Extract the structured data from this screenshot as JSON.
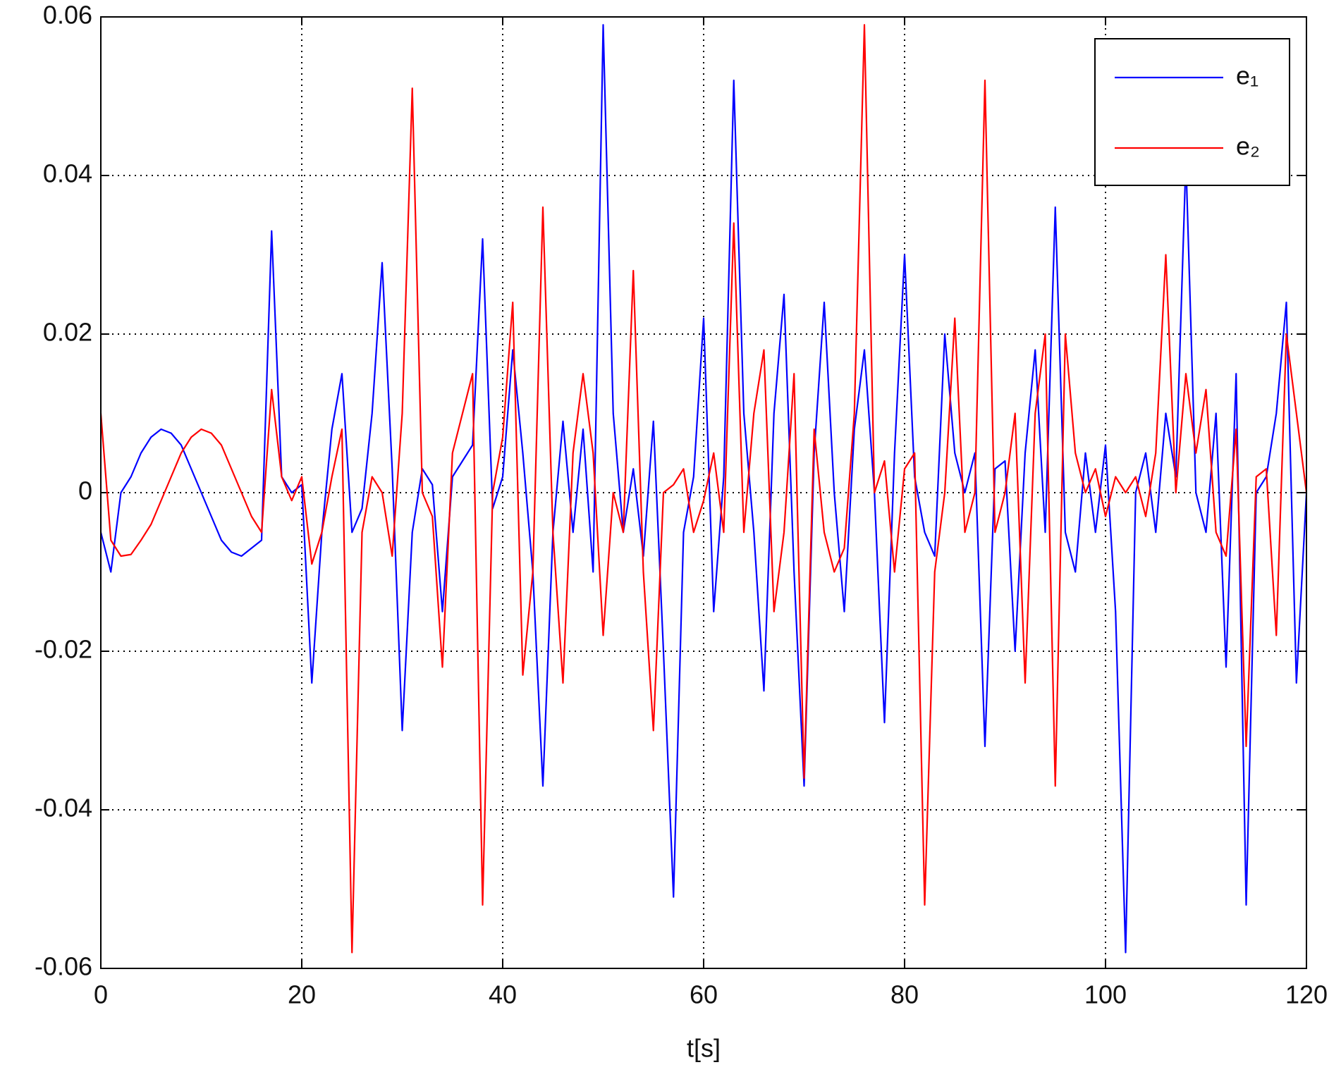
{
  "chart_data": {
    "type": "line",
    "xlabel": "t[s]",
    "x": [
      0,
      1,
      2,
      3,
      4,
      5,
      6,
      7,
      8,
      9,
      10,
      11,
      12,
      13,
      14,
      15,
      16,
      17,
      18,
      19,
      20,
      21,
      22,
      23,
      24,
      25,
      26,
      27,
      28,
      29,
      30,
      31,
      32,
      33,
      34,
      35,
      36,
      37,
      38,
      39,
      40,
      41,
      42,
      43,
      44,
      45,
      46,
      47,
      48,
      49,
      50,
      51,
      52,
      53,
      54,
      55,
      56,
      57,
      58,
      59,
      60,
      61,
      62,
      63,
      64,
      65,
      66,
      67,
      68,
      69,
      70,
      71,
      72,
      73,
      74,
      75,
      76,
      77,
      78,
      79,
      80,
      81,
      82,
      83,
      84,
      85,
      86,
      87,
      88,
      89,
      90,
      91,
      92,
      93,
      94,
      95,
      96,
      97,
      98,
      99,
      100,
      101,
      102,
      103,
      104,
      105,
      106,
      107,
      108,
      109,
      110,
      111,
      112,
      113,
      114,
      115,
      116,
      117,
      118,
      119,
      120
    ],
    "series": [
      {
        "name": "e₁",
        "color": "#0000ff",
        "values": [
          -0.005,
          -0.01,
          0,
          0.002,
          0.005,
          0.007,
          0.008,
          0.0075,
          0.006,
          0.003,
          0,
          -0.003,
          -0.006,
          -0.0075,
          -0.008,
          -0.007,
          -0.006,
          0.033,
          0.002,
          0,
          0.001,
          -0.024,
          -0.005,
          0.008,
          0.015,
          -0.005,
          -0.002,
          0.01,
          0.029,
          0.003,
          -0.03,
          -0.005,
          0.003,
          0.001,
          -0.015,
          0.002,
          0.004,
          0.006,
          0.032,
          -0.002,
          0.002,
          0.018,
          0.005,
          -0.01,
          -0.037,
          -0.005,
          0.009,
          -0.005,
          0.008,
          -0.01,
          0.059,
          0.01,
          -0.005,
          0.003,
          -0.008,
          0.009,
          -0.02,
          -0.051,
          -0.005,
          0.002,
          0.022,
          -0.015,
          0.002,
          0.052,
          0.01,
          -0.005,
          -0.025,
          0.01,
          0.025,
          -0.01,
          -0.037,
          0.005,
          0.024,
          0,
          -0.015,
          0.008,
          0.018,
          0,
          -0.029,
          0.005,
          0.03,
          0.002,
          -0.005,
          -0.008,
          0.02,
          0.005,
          0,
          0.005,
          -0.032,
          0.003,
          0.004,
          -0.02,
          0.005,
          0.018,
          -0.005,
          0.036,
          -0.005,
          -0.01,
          0.005,
          -0.005,
          0.006,
          -0.015,
          -0.058,
          0,
          0.005,
          -0.005,
          0.01,
          0.002,
          0.042,
          0,
          -0.005,
          0.01,
          -0.022,
          0.015,
          -0.052,
          0,
          0.002,
          0.01,
          0.024,
          -0.024,
          0
        ]
      },
      {
        "name": "e₂",
        "color": "#ff0000",
        "values": [
          0.01,
          -0.006,
          -0.008,
          -0.0078,
          -0.006,
          -0.004,
          -0.001,
          0.002,
          0.005,
          0.007,
          0.008,
          0.0075,
          0.006,
          0.003,
          0,
          -0.003,
          -0.005,
          0.013,
          0.002,
          -0.001,
          0.002,
          -0.009,
          -0.005,
          0.002,
          0.008,
          -0.058,
          -0.005,
          0.002,
          0,
          -0.008,
          0.01,
          0.051,
          0,
          -0.003,
          -0.022,
          0.005,
          0.01,
          0.015,
          -0.052,
          0,
          0.007,
          0.024,
          -0.023,
          -0.01,
          0.036,
          -0.005,
          -0.024,
          0.005,
          0.015,
          0.005,
          -0.018,
          0,
          -0.005,
          0.028,
          -0.01,
          -0.03,
          0,
          0.001,
          0.003,
          -0.005,
          -0.001,
          0.005,
          -0.005,
          0.034,
          -0.005,
          0.01,
          0.018,
          -0.015,
          -0.005,
          0.015,
          -0.036,
          0.008,
          -0.005,
          -0.01,
          -0.007,
          0.01,
          0.059,
          0,
          0.004,
          -0.01,
          0.003,
          0.005,
          -0.052,
          -0.01,
          0,
          0.022,
          -0.005,
          0,
          0.052,
          -0.005,
          0,
          0.01,
          -0.024,
          0.01,
          0.02,
          -0.037,
          0.02,
          0.005,
          0,
          0.003,
          -0.003,
          0.002,
          0,
          0.002,
          -0.003,
          0.005,
          0.03,
          0,
          0.015,
          0.005,
          0.013,
          -0.005,
          -0.008,
          0.008,
          -0.032,
          0.002,
          0.003,
          -0.018,
          0.02,
          0.01,
          0
        ]
      }
    ],
    "xlim": [
      0,
      120
    ],
    "xticks": [
      0,
      20,
      40,
      60,
      80,
      100,
      120
    ],
    "ylim": [
      -0.06,
      0.06
    ],
    "yticks": [
      -0.06,
      -0.04,
      -0.02,
      0,
      0.02,
      0.04,
      0.06
    ],
    "grid": true,
    "legend": "northeast"
  }
}
